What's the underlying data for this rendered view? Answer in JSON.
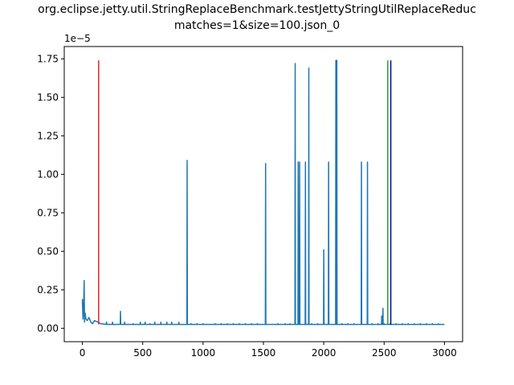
{
  "chart_data": {
    "type": "line",
    "title_lines": [
      "org.eclipse.jetty.util.StringReplaceBenchmark.testJettyStringUtilReplaceReduc",
      "matches=1&size=100.json_0"
    ],
    "xlabel": "",
    "ylabel": "",
    "y_offset_label": "1e−5",
    "xlim": [
      -150,
      3150
    ],
    "ylim": [
      -8.7e-07,
      1.83e-05
    ],
    "x_ticks": [
      0,
      500,
      1000,
      1500,
      2000,
      2500,
      3000
    ],
    "x_tick_labels": [
      "0",
      "500",
      "1000",
      "1500",
      "2000",
      "2500",
      "3000"
    ],
    "y_ticks": [
      0,
      2.5e-06,
      5e-06,
      7.5e-06,
      1e-05,
      1.25e-05,
      1.5e-05,
      1.75e-05
    ],
    "y_tick_labels": [
      "0.00",
      "0.25",
      "0.50",
      "0.75",
      "1.00",
      "1.25",
      "1.50",
      "1.75"
    ],
    "grid": false,
    "series": [
      {
        "color": "#1f77b4",
        "baseline": 2.5e-07,
        "early_noise": [
          [
            0,
            1.9e-06
          ],
          [
            5,
            6e-07
          ],
          [
            10,
            1.2e-06
          ],
          [
            15,
            3.1e-06
          ],
          [
            18,
            4e-07
          ],
          [
            22,
            1e-06
          ],
          [
            30,
            6e-07
          ],
          [
            40,
            5e-07
          ],
          [
            55,
            7e-07
          ],
          [
            70,
            4e-07
          ],
          [
            85,
            3e-07
          ],
          [
            100,
            5e-07
          ],
          [
            130,
            4e-07
          ],
          [
            150,
            3e-07
          ]
        ],
        "spikes": [
          [
            200,
            4e-07
          ],
          [
            250,
            4e-07
          ],
          [
            316,
            1.1e-06
          ],
          [
            350,
            4e-07
          ],
          [
            420,
            3e-07
          ],
          [
            480,
            4e-07
          ],
          [
            520,
            4e-07
          ],
          [
            560,
            3e-07
          ],
          [
            600,
            4e-07
          ],
          [
            650,
            4e-07
          ],
          [
            700,
            4e-07
          ],
          [
            740,
            4e-07
          ],
          [
            800,
            4e-07
          ],
          [
            868,
            1.09e-05
          ],
          [
            900,
            3e-07
          ],
          [
            950,
            3e-07
          ],
          [
            1000,
            3e-07
          ],
          [
            1100,
            3e-07
          ],
          [
            1150,
            3e-07
          ],
          [
            1200,
            3e-07
          ],
          [
            1250,
            3e-07
          ],
          [
            1300,
            3e-07
          ],
          [
            1350,
            3e-07
          ],
          [
            1400,
            3e-07
          ],
          [
            1450,
            3e-07
          ],
          [
            1518,
            1.07e-05
          ],
          [
            1620,
            3e-07
          ],
          [
            1680,
            3e-07
          ],
          [
            1720,
            3e-07
          ],
          [
            1763,
            1.72e-05
          ],
          [
            1788,
            1.08e-05
          ],
          [
            1800,
            1.08e-05
          ],
          [
            1848,
            1.08e-05
          ],
          [
            1876,
            1.69e-05
          ],
          [
            1900,
            3e-07
          ],
          [
            1950,
            3e-07
          ],
          [
            2000,
            5.1e-06
          ],
          [
            2040,
            1.08e-05
          ],
          [
            2100,
            1.74e-05
          ],
          [
            2108,
            1.74e-05
          ],
          [
            2150,
            3e-07
          ],
          [
            2200,
            3e-07
          ],
          [
            2250,
            3e-07
          ],
          [
            2312,
            1.08e-05
          ],
          [
            2362,
            1.08e-05
          ],
          [
            2400,
            3e-07
          ],
          [
            2450,
            3e-07
          ],
          [
            2480,
            8e-07
          ],
          [
            2490,
            1.3e-06
          ],
          [
            2500,
            3e-07
          ],
          [
            2550,
            3e-07
          ],
          [
            2600,
            3e-07
          ],
          [
            2650,
            3e-07
          ],
          [
            2700,
            3e-07
          ],
          [
            2750,
            3e-07
          ],
          [
            2800,
            3e-07
          ],
          [
            2850,
            3e-07
          ],
          [
            2900,
            3e-07
          ],
          [
            2950,
            3e-07
          ]
        ],
        "x_end": 3000
      }
    ],
    "vlines": [
      {
        "x": 135,
        "y0": 2.5e-07,
        "y1": 1.74e-05,
        "color": "#d62728"
      },
      {
        "x": 2530,
        "y0": 2.5e-07,
        "y1": 1.74e-05,
        "color": "#2ca02c"
      },
      {
        "x": 2555,
        "y0": 2.5e-07,
        "y1": 1.74e-05,
        "color": "#0000aa"
      }
    ]
  }
}
